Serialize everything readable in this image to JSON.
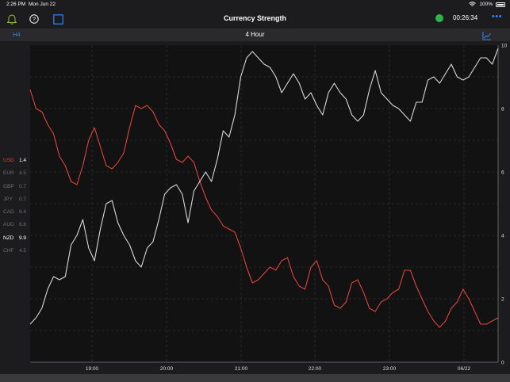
{
  "status_bar": {
    "time": "2:26 PM",
    "date": "Mon Jun 22",
    "battery": "100%"
  },
  "toolbar": {
    "title": "Currency Strength",
    "timer": "00:26:34"
  },
  "subbar": {
    "timeframe": "H4",
    "label": "4 Hour"
  },
  "legend": [
    {
      "currency": "USD",
      "value": "1.4",
      "color": "#e0443e",
      "active": true
    },
    {
      "currency": "EUR",
      "value": "4.5",
      "color": "#6e6e70",
      "active": false
    },
    {
      "currency": "GBP",
      "value": "0.7",
      "color": "#6e6e70",
      "active": false
    },
    {
      "currency": "JPY",
      "value": "0.7",
      "color": "#6e6e70",
      "active": false
    },
    {
      "currency": "CAD",
      "value": "8.4",
      "color": "#6e6e70",
      "active": false
    },
    {
      "currency": "AUD",
      "value": "6.8",
      "color": "#6e6e70",
      "active": false
    },
    {
      "currency": "NZD",
      "value": "9.9",
      "color": "#ffffff",
      "active": true
    },
    {
      "currency": "CHF",
      "value": "4.5",
      "color": "#6e6e70",
      "active": false
    }
  ],
  "colors": {
    "accent": "#2f86ff",
    "usd": "#e0443e",
    "nzd": "#d8d8d8",
    "online": "#2fb34a"
  },
  "chart_data": {
    "type": "line",
    "x_tick_labels": [
      "19:00",
      "20:00",
      "21:00",
      "22:00",
      "23:00",
      "06/22"
    ],
    "y_ticks": [
      "0",
      "2",
      "4",
      "6",
      "8",
      "10"
    ],
    "ylim": [
      0,
      10
    ],
    "grid": true,
    "series": [
      {
        "name": "USD",
        "color": "#e0443e",
        "values": [
          8.6,
          8.0,
          7.9,
          7.5,
          7.2,
          6.5,
          6.2,
          5.7,
          5.6,
          6.2,
          7.0,
          7.4,
          6.8,
          6.2,
          6.1,
          6.3,
          6.6,
          7.4,
          8.1,
          8.0,
          8.1,
          7.9,
          7.5,
          7.3,
          6.9,
          6.4,
          6.3,
          6.5,
          6.3,
          5.7,
          5.2,
          4.8,
          4.6,
          4.3,
          4.2,
          4.1,
          3.6,
          3.0,
          2.5,
          2.6,
          2.8,
          3.0,
          2.9,
          3.2,
          3.3,
          2.7,
          2.4,
          2.3,
          3.0,
          3.2,
          2.6,
          2.4,
          1.8,
          1.7,
          1.9,
          2.5,
          2.6,
          2.2,
          1.7,
          1.6,
          1.9,
          2.0,
          2.2,
          2.3,
          2.9,
          2.9,
          2.4,
          2.0,
          1.6,
          1.3,
          1.1,
          1.3,
          1.7,
          1.9,
          2.3,
          2.0,
          1.6,
          1.2,
          1.2,
          1.3,
          1.4
        ]
      },
      {
        "name": "NZD",
        "color": "#d8d8d8",
        "values": [
          1.2,
          1.4,
          1.7,
          2.3,
          2.7,
          2.6,
          2.7,
          3.7,
          4.0,
          4.5,
          3.6,
          3.2,
          4.2,
          5.0,
          5.1,
          4.4,
          4.0,
          3.7,
          3.2,
          3.0,
          3.6,
          3.8,
          4.5,
          5.3,
          5.5,
          5.6,
          5.3,
          4.4,
          5.4,
          5.7,
          6.0,
          5.7,
          6.4,
          7.3,
          7.1,
          7.8,
          9.0,
          9.6,
          9.8,
          9.6,
          9.4,
          9.3,
          9.0,
          8.5,
          8.8,
          9.1,
          8.8,
          8.3,
          8.5,
          8.1,
          7.8,
          8.5,
          8.8,
          8.5,
          8.3,
          7.8,
          7.6,
          7.8,
          8.6,
          9.2,
          8.5,
          8.3,
          8.1,
          8.0,
          7.8,
          7.6,
          8.2,
          8.2,
          8.9,
          9.0,
          8.8,
          9.1,
          9.4,
          9.0,
          8.9,
          9.0,
          9.3,
          9.6,
          9.6,
          9.4,
          9.9
        ]
      }
    ]
  }
}
